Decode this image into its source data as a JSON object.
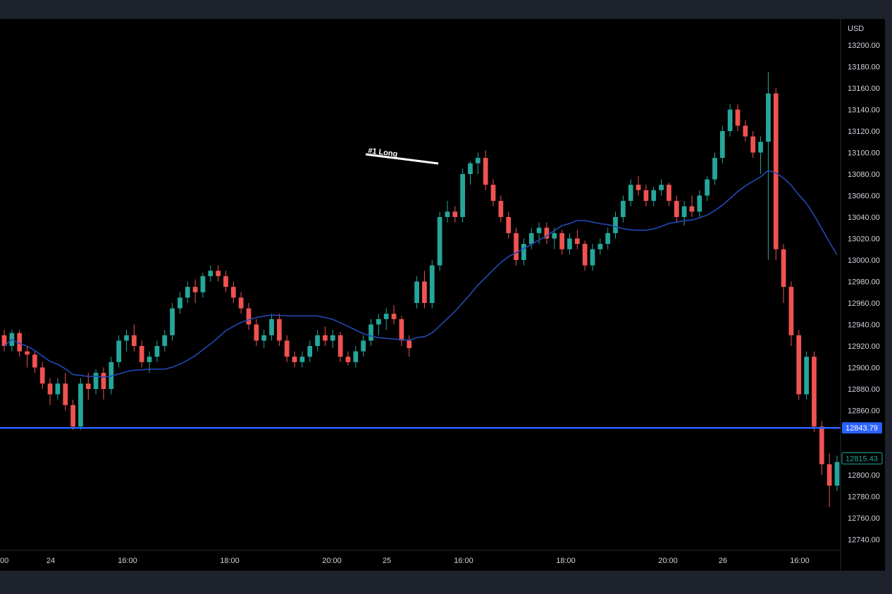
{
  "chart_data": {
    "type": "candlestick",
    "currency_label": "USD",
    "y_ticks": [
      13200,
      13180,
      13160,
      13140,
      13120,
      13100,
      13080,
      13060,
      13040,
      13020,
      13000,
      12980,
      12960,
      12940,
      12920,
      12900,
      12880,
      12860,
      12800,
      12780,
      12760,
      12740
    ],
    "y_tick_labels": [
      "13200.00",
      "13180.00",
      "13160.00",
      "13140.00",
      "13120.00",
      "13100.00",
      "13080.00",
      "13060.00",
      "13040.00",
      "13020.00",
      "13000.00",
      "12980.00",
      "12960.00",
      "12940.00",
      "12920.00",
      "12900.00",
      "12880.00",
      "12860.00",
      "12800.00",
      "12780.00",
      "12760.00",
      "12740.00"
    ],
    "y_range": [
      12730,
      13220
    ],
    "x_tick_labels": [
      "00",
      "24",
      "16:00",
      "18:00",
      "20:00",
      "25",
      "16:00",
      "18:00",
      "20:00",
      "26",
      "16:00"
    ],
    "candles": [
      [
        12930,
        12935,
        12915,
        12920
      ],
      [
        12920,
        12935,
        12915,
        12932
      ],
      [
        12932,
        12935,
        12910,
        12915
      ],
      [
        12915,
        12920,
        12900,
        12912
      ],
      [
        12912,
        12915,
        12895,
        12900
      ],
      [
        12900,
        12905,
        12880,
        12885
      ],
      [
        12885,
        12890,
        12865,
        12875
      ],
      [
        12875,
        12890,
        12870,
        12885
      ],
      [
        12885,
        12895,
        12860,
        12865
      ],
      [
        12865,
        12870,
        12842,
        12845
      ],
      [
        12845,
        12890,
        12842,
        12885
      ],
      [
        12885,
        12895,
        12870,
        12880
      ],
      [
        12880,
        12898,
        12875,
        12895
      ],
      [
        12895,
        12900,
        12870,
        12880
      ],
      [
        12880,
        12910,
        12875,
        12905
      ],
      [
        12905,
        12930,
        12900,
        12925
      ],
      [
        12925,
        12935,
        12915,
        12930
      ],
      [
        12930,
        12940,
        12915,
        12920
      ],
      [
        12920,
        12925,
        12900,
        12905
      ],
      [
        12905,
        12915,
        12895,
        12910
      ],
      [
        12910,
        12925,
        12905,
        12920
      ],
      [
        12920,
        12935,
        12915,
        12930
      ],
      [
        12930,
        12960,
        12925,
        12955
      ],
      [
        12955,
        12970,
        12950,
        12965
      ],
      [
        12965,
        12980,
        12960,
        12975
      ],
      [
        12975,
        12982,
        12960,
        12970
      ],
      [
        12970,
        12988,
        12965,
        12985
      ],
      [
        12985,
        12995,
        12980,
        12990
      ],
      [
        12990,
        12995,
        12980,
        12985
      ],
      [
        12985,
        12990,
        12970,
        12975
      ],
      [
        12975,
        12980,
        12960,
        12965
      ],
      [
        12965,
        12970,
        12950,
        12955
      ],
      [
        12955,
        12960,
        12935,
        12940
      ],
      [
        12940,
        12945,
        12920,
        12925
      ],
      [
        12925,
        12935,
        12918,
        12930
      ],
      [
        12930,
        12950,
        12925,
        12945
      ],
      [
        12945,
        12950,
        12920,
        12925
      ],
      [
        12925,
        12930,
        12905,
        12910
      ],
      [
        12910,
        12915,
        12900,
        12905
      ],
      [
        12905,
        12915,
        12900,
        12910
      ],
      [
        12910,
        12925,
        12905,
        12920
      ],
      [
        12920,
        12935,
        12915,
        12930
      ],
      [
        12930,
        12938,
        12920,
        12925
      ],
      [
        12925,
        12935,
        12918,
        12930
      ],
      [
        12930,
        12933,
        12905,
        12910
      ],
      [
        12910,
        12915,
        12902,
        12905
      ],
      [
        12905,
        12920,
        12900,
        12915
      ],
      [
        12915,
        12930,
        12910,
        12925
      ],
      [
        12925,
        12945,
        12920,
        12940
      ],
      [
        12940,
        12950,
        12930,
        12945
      ],
      [
        12945,
        12955,
        12935,
        12950
      ],
      [
        12950,
        12958,
        12940,
        12945
      ],
      [
        12945,
        12948,
        12920,
        12925
      ],
      [
        12925,
        12930,
        12910,
        12918
      ],
      [
        12960,
        12985,
        12955,
        12980
      ],
      [
        12980,
        12990,
        12955,
        12960
      ],
      [
        12960,
        13000,
        12955,
        12995
      ],
      [
        12995,
        13045,
        12990,
        13040
      ],
      [
        13040,
        13055,
        13035,
        13045
      ],
      [
        13045,
        13050,
        13035,
        13040
      ],
      [
        13040,
        13085,
        13035,
        13080
      ],
      [
        13080,
        13092,
        13070,
        13090
      ],
      [
        13090,
        13100,
        13080,
        13095
      ],
      [
        13095,
        13102,
        13065,
        13070
      ],
      [
        13070,
        13075,
        13050,
        13055
      ],
      [
        13055,
        13060,
        13035,
        13040
      ],
      [
        13040,
        13045,
        13020,
        13025
      ],
      [
        13025,
        13030,
        12995,
        13000
      ],
      [
        13000,
        13020,
        12995,
        13015
      ],
      [
        13015,
        13030,
        13010,
        13025
      ],
      [
        13025,
        13035,
        13015,
        13030
      ],
      [
        13030,
        13035,
        13015,
        13020
      ],
      [
        13020,
        13030,
        13010,
        13025
      ],
      [
        13025,
        13028,
        13005,
        13010
      ],
      [
        13010,
        13025,
        13005,
        13020
      ],
      [
        13020,
        13028,
        13010,
        13015
      ],
      [
        13015,
        13018,
        12990,
        12995
      ],
      [
        12995,
        13015,
        12990,
        13010
      ],
      [
        13010,
        13020,
        13005,
        13015
      ],
      [
        13015,
        13030,
        13010,
        13025
      ],
      [
        13025,
        13045,
        13020,
        13040
      ],
      [
        13040,
        13060,
        13035,
        13055
      ],
      [
        13055,
        13075,
        13050,
        13070
      ],
      [
        13070,
        13078,
        13060,
        13065
      ],
      [
        13065,
        13070,
        13050,
        13055
      ],
      [
        13055,
        13068,
        13050,
        13065
      ],
      [
        13065,
        13075,
        13060,
        13070
      ],
      [
        13070,
        13072,
        13050,
        13055
      ],
      [
        13055,
        13060,
        13035,
        13040
      ],
      [
        13040,
        13055,
        13032,
        13050
      ],
      [
        13050,
        13060,
        13040,
        13045
      ],
      [
        13045,
        13065,
        13040,
        13060
      ],
      [
        13060,
        13078,
        13055,
        13075
      ],
      [
        13075,
        13100,
        13070,
        13095
      ],
      [
        13095,
        13125,
        13090,
        13120
      ],
      [
        13120,
        13145,
        13115,
        13140
      ],
      [
        13140,
        13145,
        13120,
        13125
      ],
      [
        13125,
        13130,
        13110,
        13115
      ],
      [
        13115,
        13120,
        13095,
        13100
      ],
      [
        13100,
        13115,
        13080,
        13110
      ],
      [
        13110,
        13175,
        13000,
        13155
      ],
      [
        13155,
        13160,
        13000,
        13010
      ],
      [
        13010,
        13015,
        12960,
        12975
      ],
      [
        12975,
        12980,
        12920,
        12930
      ],
      [
        12930,
        12935,
        12870,
        12875
      ],
      [
        12875,
        12915,
        12870,
        12910
      ],
      [
        12910,
        12915,
        12840,
        12845
      ],
      [
        12845,
        12850,
        12800,
        12810
      ],
      [
        12810,
        12820,
        12770,
        12790
      ],
      [
        12790,
        12818,
        12785,
        12812
      ]
    ],
    "ema_series": "20-period moving average (blue)",
    "horizontal_line": {
      "value": 12843.79,
      "label": "12843.79",
      "color": "#2962ff"
    },
    "last_price": {
      "value": 12815.43,
      "label": "12815.43",
      "color": "#26a69a"
    },
    "annotation": {
      "text": "#1 Long"
    },
    "colors": {
      "up": "#26a69a",
      "down": "#ef5350",
      "ma": "#2449b5",
      "background": "#000000",
      "frame": "#1e222d",
      "axis_text": "#d1d4dc"
    }
  }
}
